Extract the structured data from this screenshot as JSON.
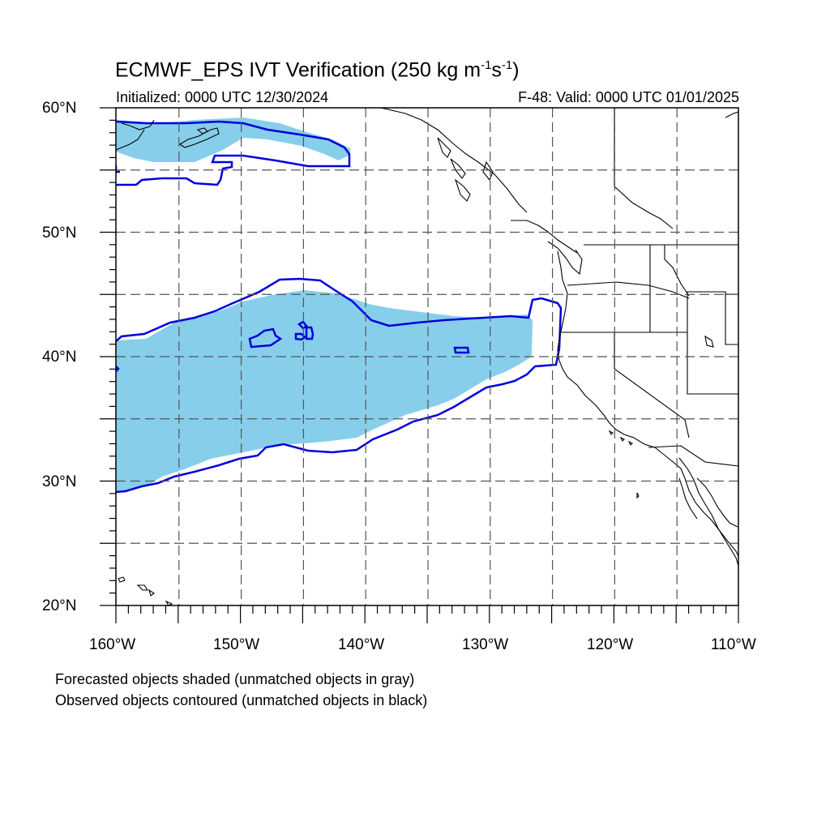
{
  "title": {
    "main_before": "ECMWF_EPS IVT Verification (250 kg m",
    "sup1": "-1",
    "mid": "s",
    "sup2": "-1",
    "main_after": ")"
  },
  "subtitle_left": "Initialized: 0000 UTC 12/30/2024",
  "subtitle_right": "F-48: Valid: 0000 UTC 01/01/2025",
  "lat_labels": [
    "60°N",
    "50°N",
    "40°N",
    "30°N",
    "20°N"
  ],
  "lon_labels": [
    "160°W",
    "150°W",
    "140°W",
    "130°W",
    "120°W",
    "110°W"
  ],
  "captions": [
    "Forecasted objects shaded (unmatched objects in gray)",
    "Observed objects contoured (unmatched objects in black)"
  ],
  "colors": {
    "forecast_fill": "#87ceeb",
    "observed_contour": "#0000dd",
    "coastline": "#000000",
    "grid": "#555555"
  },
  "map_extent": {
    "lon_min": -160,
    "lon_max": -110,
    "lat_min": 20,
    "lat_max": 60,
    "grid_step_deg": 5
  }
}
